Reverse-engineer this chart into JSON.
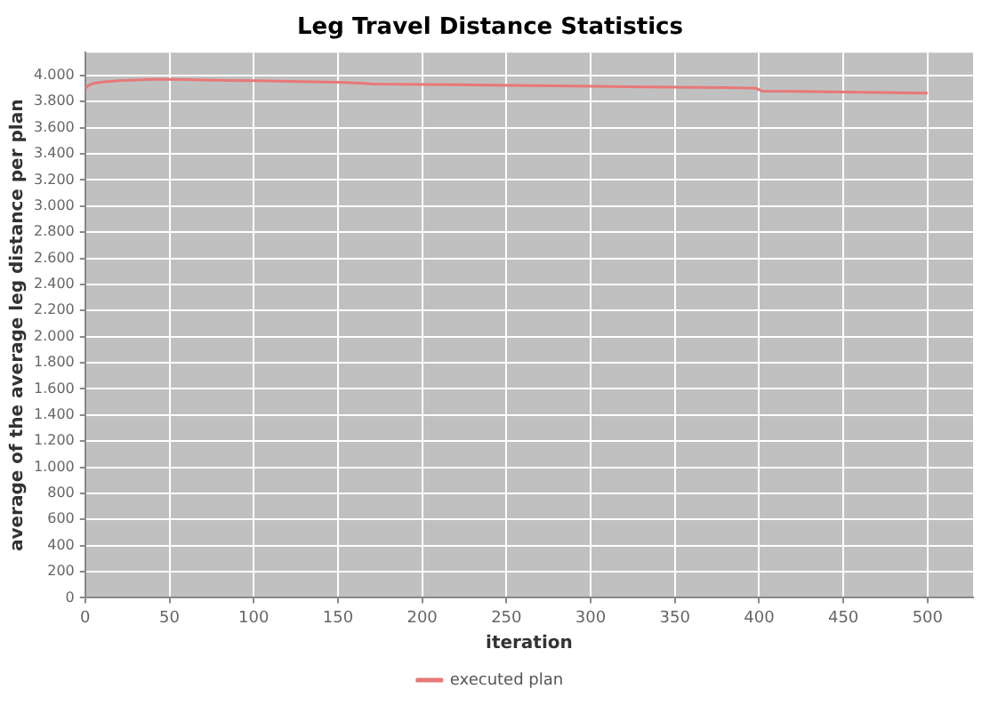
{
  "chart_data": {
    "type": "line",
    "title": "Leg Travel Distance Statistics",
    "xlabel": "iteration",
    "ylabel": "average of the average leg distance per plan",
    "x": [
      0,
      2,
      5,
      10,
      15,
      20,
      30,
      40,
      50,
      60,
      70,
      80,
      100,
      120,
      150,
      165,
      170,
      200,
      230,
      250,
      265,
      300,
      330,
      350,
      380,
      398,
      402,
      420,
      450,
      480,
      500
    ],
    "series": [
      {
        "name": "executed plan",
        "color": "#e87878",
        "values": [
          3900,
          3925,
          3940,
          3950,
          3955,
          3960,
          3965,
          3970,
          3970,
          3968,
          3965,
          3963,
          3960,
          3955,
          3948,
          3940,
          3935,
          3932,
          3928,
          3925,
          3922,
          3918,
          3913,
          3910,
          3907,
          3903,
          3880,
          3878,
          3873,
          3868,
          3865
        ]
      }
    ],
    "xlim": [
      0,
      527
    ],
    "xticks": [
      0,
      50,
      100,
      150,
      200,
      250,
      300,
      350,
      400,
      450,
      500
    ],
    "ylim": [
      0,
      4175
    ],
    "yticks": [
      0,
      200,
      400,
      600,
      800,
      {
        "value": 1000,
        "label": "1.000"
      },
      {
        "value": 1200,
        "label": "1.200"
      },
      {
        "value": 1400,
        "label": "1.400"
      },
      {
        "value": 1600,
        "label": "1.600"
      },
      {
        "value": 1800,
        "label": "1.800"
      },
      {
        "value": 2000,
        "label": "2.000"
      },
      {
        "value": 2200,
        "label": "2.200"
      },
      {
        "value": 2400,
        "label": "2.400"
      },
      {
        "value": 2600,
        "label": "2.600"
      },
      {
        "value": 2800,
        "label": "2.800"
      },
      {
        "value": 3000,
        "label": "3.000"
      },
      {
        "value": 3200,
        "label": "3.200"
      },
      {
        "value": 3400,
        "label": "3.400"
      },
      {
        "value": 3600,
        "label": "3.600"
      },
      {
        "value": 3800,
        "label": "3.800"
      },
      {
        "value": 4000,
        "label": "4.000"
      }
    ],
    "grid": true,
    "legend": "bottom",
    "marker": "none",
    "line_style": "solid"
  }
}
